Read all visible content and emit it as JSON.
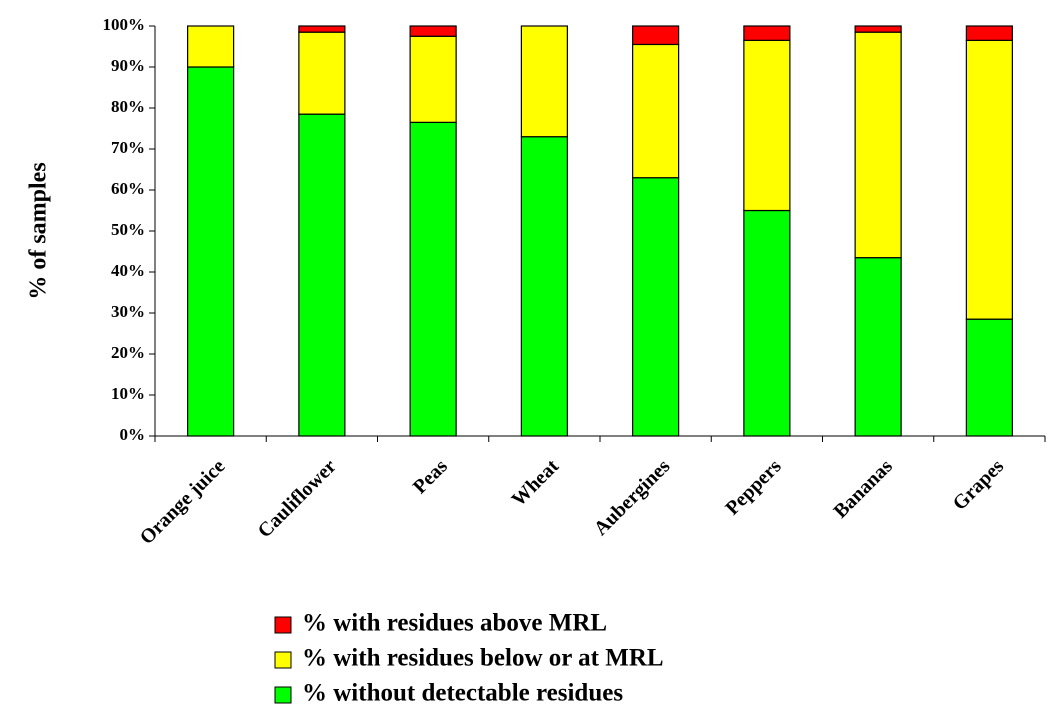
{
  "chart_data": {
    "type": "stacked_bar",
    "y_label": "% of samples",
    "categories": [
      "Orange juice",
      "Cauliflower",
      "Peas",
      "Wheat",
      "Aubergines",
      "Peppers",
      "Bananas",
      "Grapes"
    ],
    "series": [
      {
        "name": "% without detectable residues",
        "color": "#00ff00",
        "values": [
          90,
          78.5,
          76.5,
          73,
          63,
          55,
          43.5,
          28.5
        ]
      },
      {
        "name": "% with residues below or at MRL",
        "color": "#ffff00",
        "values": [
          10,
          20,
          21,
          27,
          32.5,
          41.5,
          55,
          68
        ]
      },
      {
        "name": "% with residues above MRL",
        "color": "#ff0000",
        "values": [
          0,
          1.5,
          2.5,
          0,
          4.5,
          3.5,
          1.5,
          3.5
        ]
      }
    ],
    "ylim": [
      0,
      100
    ],
    "yticks": [
      {
        "value": 0,
        "label": "0%"
      },
      {
        "value": 10,
        "label": "10%"
      },
      {
        "value": 20,
        "label": "20%"
      },
      {
        "value": 30,
        "label": "30%"
      },
      {
        "value": 40,
        "label": "40%"
      },
      {
        "value": 50,
        "label": "50%"
      },
      {
        "value": 60,
        "label": "60%"
      },
      {
        "value": 70,
        "label": "70%"
      },
      {
        "value": 80,
        "label": "80%"
      },
      {
        "value": 90,
        "label": "90%"
      },
      {
        "value": 100,
        "label": "100%"
      }
    ]
  }
}
